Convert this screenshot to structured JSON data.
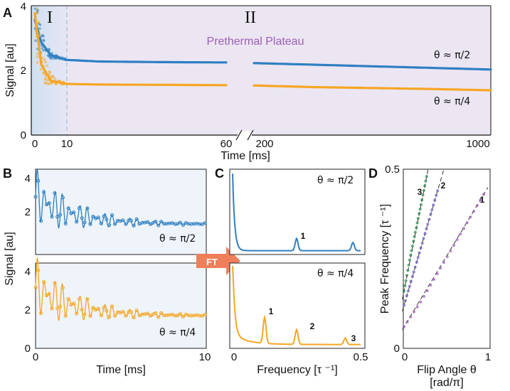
{
  "colors": {
    "blue": "#2f7fc1",
    "orange": "#f5a623",
    "purple": "#9b5fb5",
    "green": "#2e8b4f",
    "violet": "#6a5fc2",
    "regionI_bg": "#dbe6f3",
    "regionII_bg": "#ece6f3",
    "panelB_bg": "#eef4fa",
    "ft_arrow": "#ef7f5a"
  },
  "panels": {
    "A": {
      "label": "A",
      "region_I": "I",
      "region_II": "II",
      "plateau_label": "Prethermal Plateau",
      "xlabel": "Time [ms]",
      "ylabel": "Signal [au]",
      "xticks_left": [
        "0",
        "10",
        "60"
      ],
      "xticks_right": [
        "200",
        "1000"
      ],
      "yticks": [
        "0",
        "2",
        "4"
      ],
      "ann_blue": "θ ≈ π/2",
      "ann_orange": "θ ≈ π/4"
    },
    "B": {
      "label": "B",
      "ylabel": "Signal [au]",
      "xlabel": "Time [ms]",
      "xticks": [
        "0",
        "10"
      ],
      "yticks_top": [
        "2",
        "4"
      ],
      "yticks_bottom": [
        "0",
        "2",
        "4"
      ],
      "ann_top": "θ ≈ π/2",
      "ann_bottom": "θ ≈ π/4"
    },
    "C": {
      "label": "C",
      "xlabel": "Frequency [τ ⁻¹]",
      "xticks": [
        "0",
        "0.5"
      ],
      "ann_top": "θ ≈ π/2",
      "ann_bottom": "θ ≈ π/4",
      "ft_label": "FT",
      "peaks_top": [
        "1"
      ],
      "peaks_bottom": [
        "1",
        "2",
        "3"
      ]
    },
    "D": {
      "label": "D",
      "ylabel": "Peak Frequency [τ ⁻¹]",
      "xlabel_1": "Flip Angle θ",
      "xlabel_2": "[rad/π]",
      "xticks": [
        "0",
        "1"
      ],
      "yticks": [
        "0",
        "0.5"
      ],
      "line_labels": [
        "3",
        "2",
        "1"
      ]
    }
  },
  "chart_data": [
    {
      "type": "scatter",
      "panel": "A",
      "xlabel": "Time [ms]",
      "ylabel": "Signal [au]",
      "xlim_segments": [
        [
          0,
          60
        ],
        [
          200,
          1000
        ]
      ],
      "ylim": [
        0,
        4
      ],
      "grid": false,
      "series": [
        {
          "name": "θ ≈ π/2",
          "x": [
            0,
            2,
            5,
            10,
            20,
            40,
            60,
            200,
            400,
            600,
            800,
            1000
          ],
          "y": [
            3.6,
            2.9,
            2.5,
            2.35,
            2.3,
            2.28,
            2.27,
            2.25,
            2.2,
            2.15,
            2.1,
            2.05
          ]
        },
        {
          "name": "θ ≈ π/4",
          "x": [
            0,
            2,
            5,
            10,
            20,
            40,
            60,
            200,
            400,
            600,
            800,
            1000
          ],
          "y": [
            3.8,
            2.2,
            1.7,
            1.6,
            1.58,
            1.57,
            1.56,
            1.55,
            1.5,
            1.47,
            1.44,
            1.4
          ]
        }
      ]
    },
    {
      "type": "line",
      "panel": "B",
      "xlabel": "Time [ms]",
      "ylabel": "Signal [au]",
      "xlim": [
        0,
        10
      ],
      "series": [
        {
          "name": "θ ≈ π/2",
          "ylim": [
            1.2,
            4.3
          ],
          "envelope": {
            "start": 3.3,
            "end": 2.3,
            "initial_amplitude": 1.1
          }
        },
        {
          "name": "θ ≈ π/4",
          "ylim": [
            0,
            4.2
          ],
          "envelope": {
            "start": 3.0,
            "end": 1.6,
            "initial_amplitude": 1.6
          }
        }
      ]
    },
    {
      "type": "line",
      "panel": "C",
      "xlabel": "Frequency [τ ⁻¹]",
      "xlim": [
        0,
        0.5
      ],
      "series": [
        {
          "name": "θ ≈ π/2",
          "peaks": [
            {
              "label": "1",
              "x": 0.25
            },
            {
              "x": 0.47
            }
          ]
        },
        {
          "name": "θ ≈ π/4",
          "peaks": [
            {
              "label": "1",
              "x": 0.125
            },
            {
              "label": "2",
              "x": 0.25
            },
            {
              "label": "3",
              "x": 0.44
            }
          ]
        }
      ]
    },
    {
      "type": "scatter",
      "panel": "D",
      "xlabel": "Flip Angle θ [rad/π]",
      "ylabel": "Peak Frequency [τ ⁻¹]",
      "xlim": [
        0,
        1
      ],
      "ylim": [
        0,
        0.5
      ],
      "series": [
        {
          "label": "1",
          "x": [
            0.0,
            0.2,
            0.4,
            0.6,
            0.8,
            0.95
          ],
          "y": [
            0.06,
            0.13,
            0.21,
            0.29,
            0.37,
            0.43
          ]
        },
        {
          "label": "2",
          "x": [
            0.0,
            0.1,
            0.2,
            0.3,
            0.4
          ],
          "y": [
            0.12,
            0.2,
            0.28,
            0.36,
            0.44
          ]
        },
        {
          "label": "3",
          "x": [
            0.0,
            0.07,
            0.14,
            0.21,
            0.27
          ],
          "y": [
            0.16,
            0.25,
            0.33,
            0.41,
            0.48
          ]
        }
      ]
    }
  ]
}
